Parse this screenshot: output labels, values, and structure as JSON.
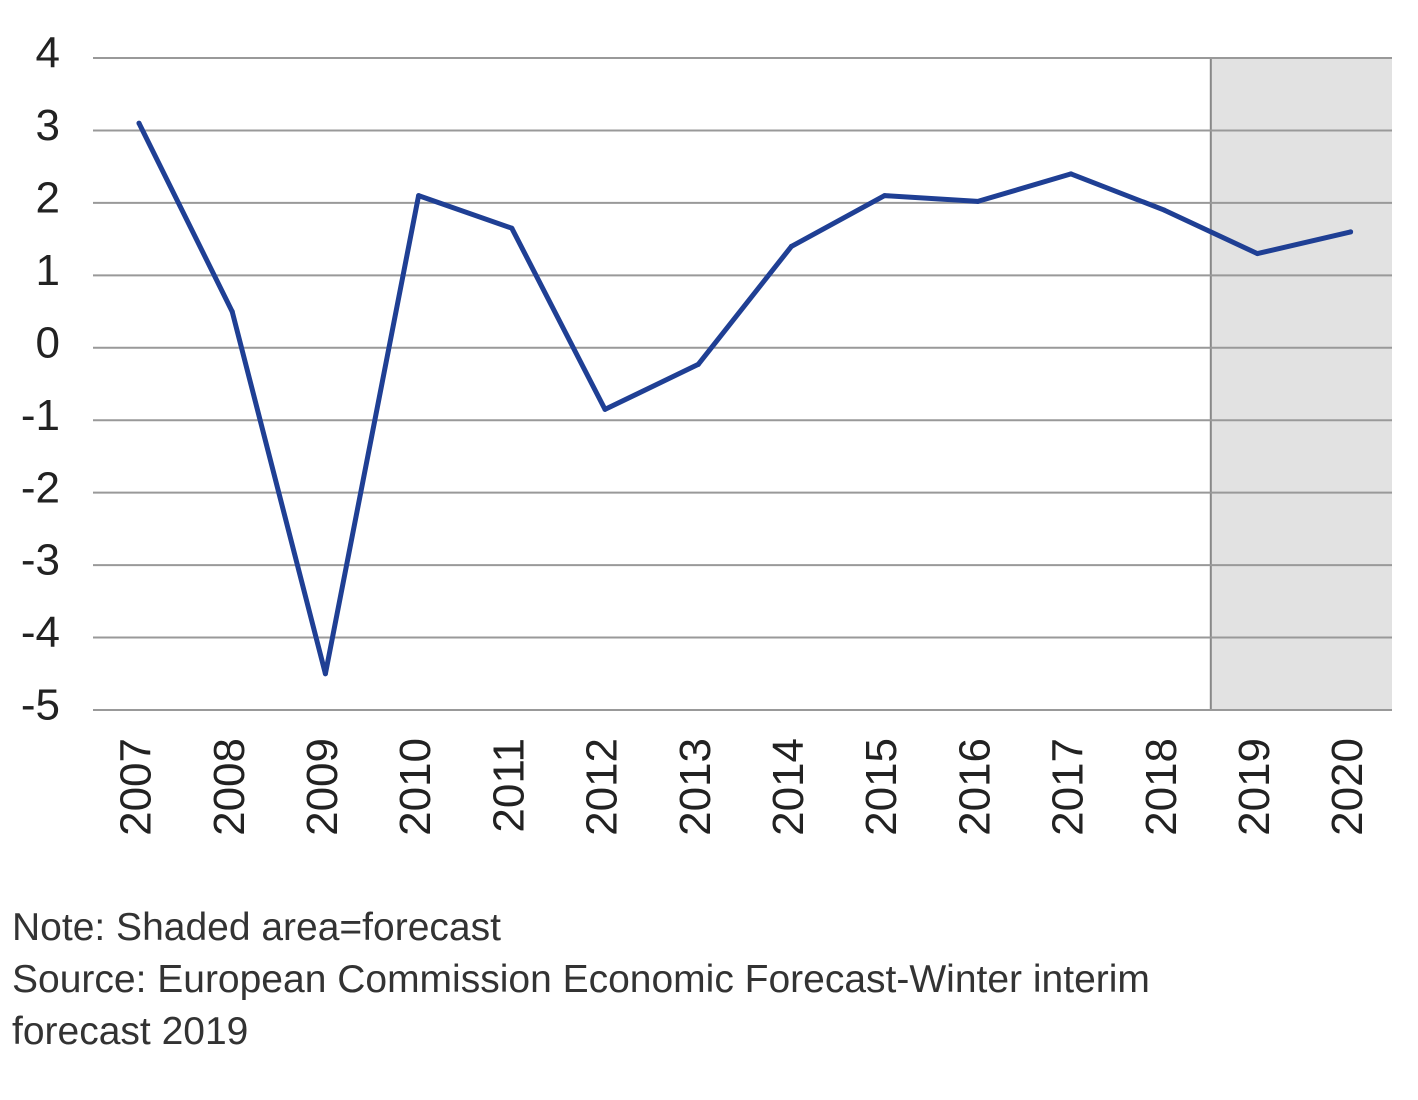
{
  "chart_data": {
    "type": "line",
    "categories": [
      "2007",
      "2008",
      "2009",
      "2010",
      "2011",
      "2012",
      "2013",
      "2014",
      "2015",
      "2016",
      "2017",
      "2018",
      "2019",
      "2020"
    ],
    "series": [
      {
        "values": [
          3.1,
          0.5,
          -4.5,
          2.1,
          1.65,
          -0.85,
          -0.23,
          1.4,
          2.1,
          2.02,
          2.4,
          1.9,
          1.3,
          1.6
        ]
      }
    ],
    "ylim": [
      -5,
      4
    ],
    "yticks": [
      "4",
      "3",
      "2",
      "1",
      "0",
      "-1",
      "-2",
      "-3",
      "-4",
      "-5"
    ],
    "ytick_values": [
      4,
      3,
      2,
      1,
      0,
      -1,
      -2,
      -3,
      -4,
      -5
    ],
    "forecast_start_category": "2019",
    "grid": "horizontal",
    "x_tick_rotation": "vertical",
    "title": "",
    "xlabel": "",
    "ylabel": "",
    "colors": {
      "line": "#1f3f94",
      "grid": "#999999",
      "forecast_shade": "#e2e2e2",
      "forecast_divider": "#888888"
    }
  },
  "notes": {
    "note": "Note: Shaded area=forecast",
    "source_line1": "Source: European Commission Economic Forecast-Winter interim",
    "source_line2": "forecast 2019"
  }
}
